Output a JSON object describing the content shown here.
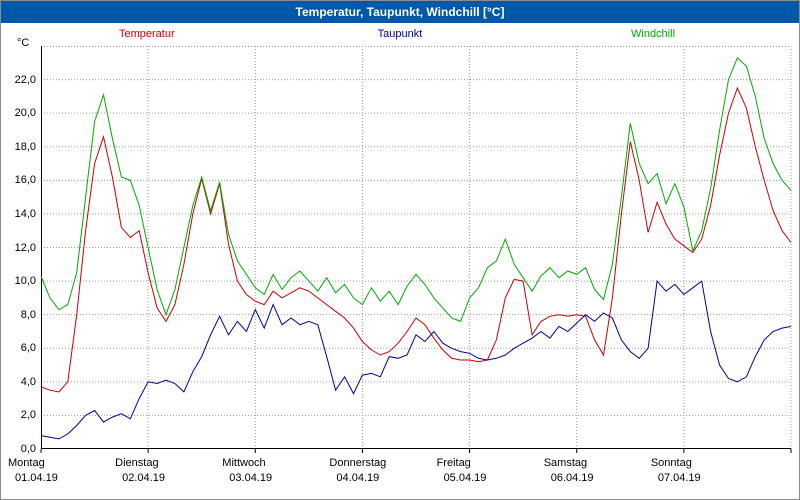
{
  "colors": {
    "titlebar": "#0058a8",
    "grid": "#999999",
    "axis": "#000000",
    "background": "#ffffff"
  },
  "chart_data": {
    "type": "line",
    "title": "Temperatur, Taupunkt, Windchill [°C]",
    "y_unit": "°C",
    "ylim": [
      0,
      24
    ],
    "x_total_hours": 168,
    "sample_step_hours": 2,
    "grid": "dotted",
    "legend_position": "top",
    "yticks": [
      {
        "value": 0,
        "label": "0,0"
      },
      {
        "value": 2,
        "label": "2,0"
      },
      {
        "value": 4,
        "label": "4,0"
      },
      {
        "value": 6,
        "label": "6,0"
      },
      {
        "value": 8,
        "label": "8,0"
      },
      {
        "value": 10,
        "label": "10,0"
      },
      {
        "value": 12,
        "label": "12,0"
      },
      {
        "value": 14,
        "label": "14,0"
      },
      {
        "value": 16,
        "label": "16,0"
      },
      {
        "value": 18,
        "label": "18,0"
      },
      {
        "value": 20,
        "label": "20,0"
      },
      {
        "value": 22,
        "label": "22,0"
      }
    ],
    "xticks": [
      {
        "day_index": 0,
        "day_name": "Montag",
        "date": "01.04.19"
      },
      {
        "day_index": 1,
        "day_name": "Dienstag",
        "date": "02.04.19"
      },
      {
        "day_index": 2,
        "day_name": "Mittwoch",
        "date": "03.04.19"
      },
      {
        "day_index": 3,
        "day_name": "Donnerstag",
        "date": "04.04.19"
      },
      {
        "day_index": 4,
        "day_name": "Freitag",
        "date": "05.04.19"
      },
      {
        "day_index": 5,
        "day_name": "Samstag",
        "date": "06.04.19"
      },
      {
        "day_index": 6,
        "day_name": "Sonntag",
        "date": "07.04.19"
      }
    ],
    "series": [
      {
        "name": "Temperatur",
        "color": "#cc0000",
        "values": [
          3.7,
          3.5,
          3.4,
          4.0,
          8.0,
          13.0,
          17.0,
          18.6,
          16.2,
          13.2,
          12.6,
          13.0,
          10.5,
          8.4,
          7.6,
          8.6,
          11.0,
          14.0,
          16.1,
          14.0,
          15.8,
          12.2,
          10.0,
          9.2,
          8.8,
          8.6,
          9.4,
          9.0,
          9.3,
          9.6,
          9.4,
          9.0,
          8.6,
          8.2,
          7.8,
          7.2,
          6.4,
          5.9,
          5.6,
          5.8,
          6.3,
          7.0,
          7.8,
          7.4,
          6.6,
          5.9,
          5.4,
          5.3,
          5.3,
          5.2,
          5.3,
          6.5,
          9.0,
          10.1,
          10.0,
          6.8,
          7.6,
          7.9,
          8.0,
          7.9,
          8.0,
          7.9,
          6.5,
          5.6,
          9.0,
          14.0,
          18.3,
          16.0,
          12.9,
          14.7,
          13.4,
          12.5,
          12.1,
          11.7,
          12.5,
          14.5,
          17.5,
          20.0,
          21.5,
          20.3,
          18.0,
          16.0,
          14.2,
          13.0,
          12.3
        ]
      },
      {
        "name": "Taupunkt",
        "color": "#000099",
        "values": [
          0.8,
          0.7,
          0.6,
          0.9,
          1.4,
          2.0,
          2.3,
          1.6,
          1.9,
          2.1,
          1.8,
          3.0,
          4.0,
          3.9,
          4.1,
          3.9,
          3.4,
          4.6,
          5.5,
          6.8,
          7.9,
          6.8,
          7.6,
          7.0,
          8.3,
          7.2,
          8.6,
          7.4,
          7.8,
          7.4,
          7.6,
          7.4,
          5.5,
          3.5,
          4.3,
          3.3,
          4.4,
          4.5,
          4.3,
          5.5,
          5.4,
          5.6,
          6.8,
          6.4,
          7.0,
          6.3,
          6.0,
          5.8,
          5.7,
          5.4,
          5.3,
          5.4,
          5.6,
          6.0,
          6.3,
          6.6,
          7.0,
          6.6,
          7.3,
          7.0,
          7.5,
          8.0,
          7.6,
          8.1,
          7.8,
          6.5,
          5.8,
          5.4,
          6.0,
          10.0,
          9.4,
          9.8,
          9.2,
          9.6,
          10.0,
          7.0,
          5.0,
          4.2,
          4.0,
          4.3,
          5.5,
          6.5,
          7.0,
          7.2,
          7.3
        ]
      },
      {
        "name": "Windchill",
        "color": "#00aa00",
        "values": [
          10.3,
          9.0,
          8.3,
          8.6,
          10.5,
          15.0,
          19.5,
          21.1,
          18.5,
          16.2,
          16.0,
          14.5,
          12.0,
          9.5,
          8.0,
          9.5,
          12.0,
          14.5,
          16.2,
          14.2,
          15.9,
          12.8,
          11.2,
          10.4,
          9.6,
          9.2,
          10.4,
          9.5,
          10.2,
          10.6,
          10.0,
          9.4,
          10.2,
          9.3,
          9.8,
          9.0,
          8.6,
          9.6,
          8.8,
          9.4,
          8.6,
          9.7,
          10.4,
          9.8,
          9.0,
          8.4,
          7.8,
          7.6,
          9.0,
          9.6,
          10.8,
          11.2,
          12.5,
          11.0,
          10.2,
          9.4,
          10.3,
          10.8,
          10.2,
          10.6,
          10.4,
          10.8,
          9.5,
          8.9,
          11.0,
          15.0,
          19.4,
          17.0,
          15.8,
          16.4,
          14.6,
          15.8,
          14.4,
          11.8,
          13.0,
          15.5,
          19.0,
          22.0,
          23.3,
          22.8,
          21.0,
          18.5,
          17.0,
          16.0,
          15.4
        ]
      }
    ]
  }
}
